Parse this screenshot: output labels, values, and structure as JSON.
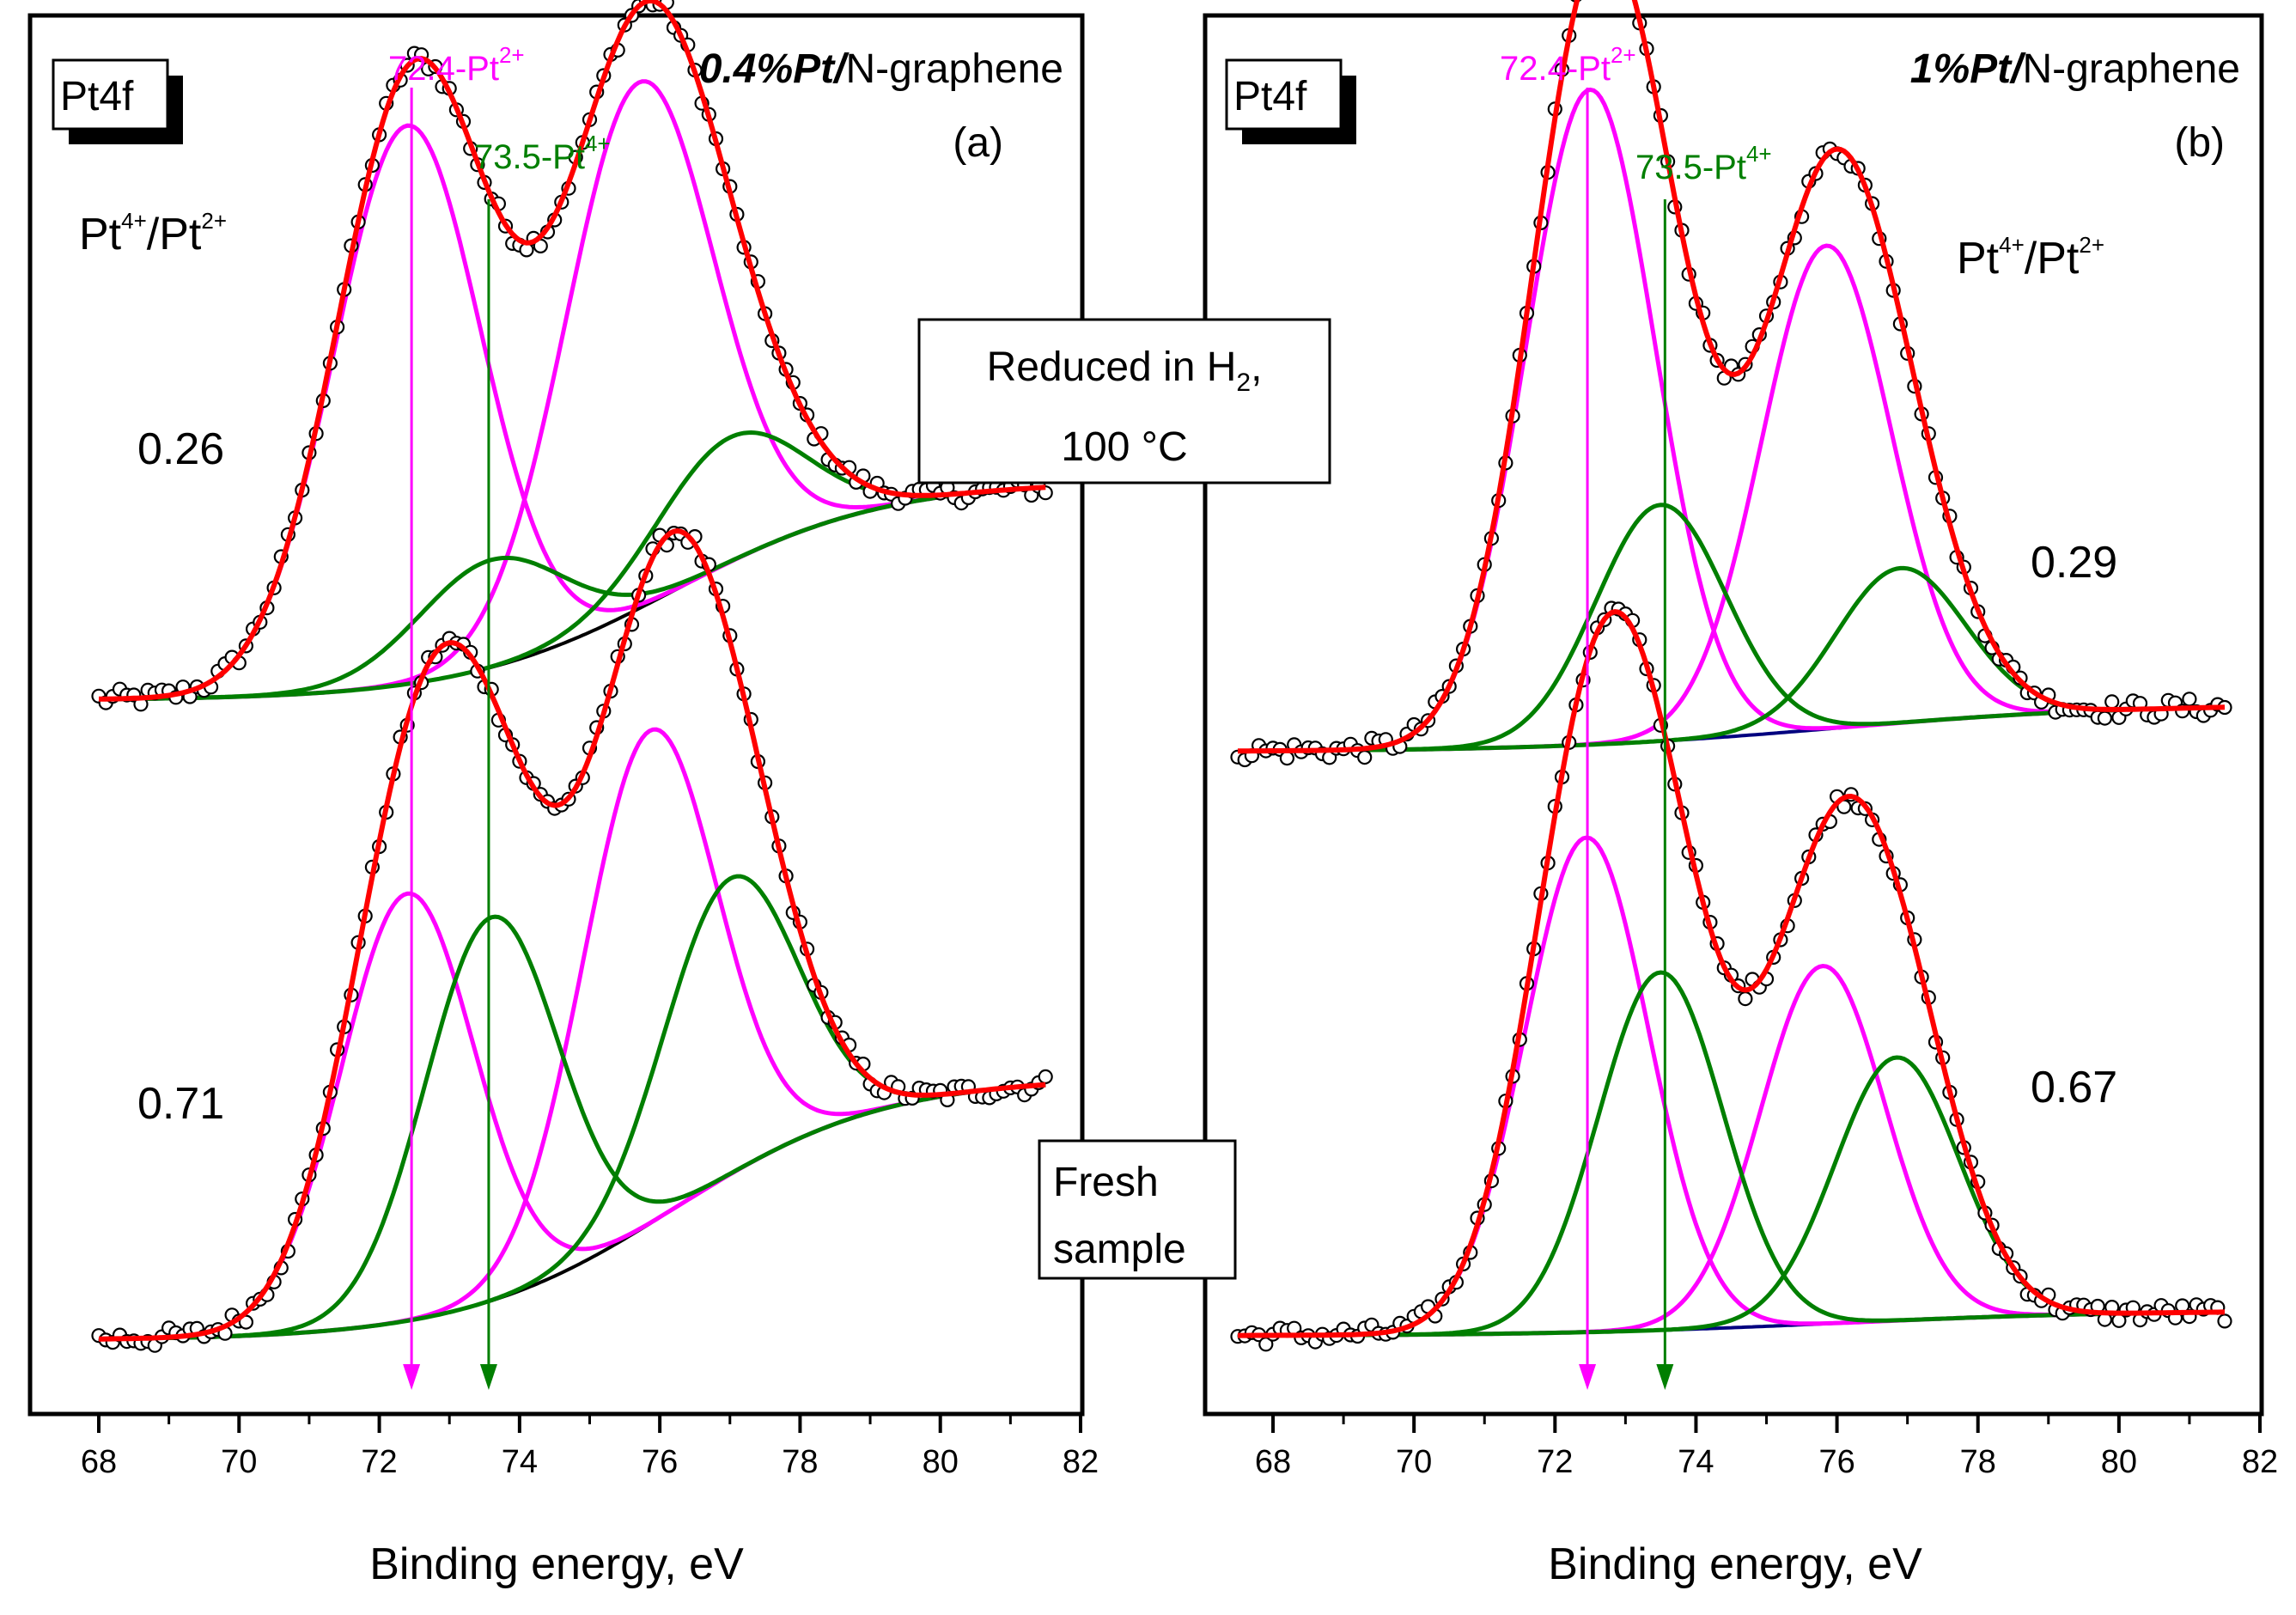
{
  "colors": {
    "data": "#ffffff",
    "envelope": "#ff0000",
    "pt2": "#ff00ff",
    "pt4": "#007f00",
    "background_a": "#000000",
    "background_b": "#00007f",
    "frame": "#000000"
  },
  "panels": [
    {
      "id": "a",
      "element_label": "Pt4f",
      "sample_prefix": "0.4%Pt/",
      "sample_suffix": "N-graphene",
      "letter": "(a)",
      "xlabel": "Binding energy, eV",
      "ratio_label_main_1": "Pt",
      "ratio_label_sup_1": "4+",
      "ratio_label_main_2": "/Pt",
      "ratio_label_sup_2": "2+",
      "marker_pt2_main": "72.4-Pt",
      "marker_pt2_sup": "2+",
      "marker_pt4_main": "73.5-Pt",
      "marker_pt4_sup": "4+",
      "ticks": [
        "68",
        "70",
        "72",
        "74",
        "76",
        "78",
        "80",
        "82"
      ]
    },
    {
      "id": "b",
      "element_label": "Pt4f",
      "sample_prefix": "1%Pt/",
      "sample_suffix": "N-graphene",
      "letter": "(b)",
      "xlabel": "Binding energy, eV",
      "ratio_label_main_1": "Pt",
      "ratio_label_sup_1": "4+",
      "ratio_label_main_2": "/Pt",
      "ratio_label_sup_2": "2+",
      "marker_pt2_main": "72.4-Pt",
      "marker_pt2_sup": "2+",
      "marker_pt4_main": "73.5-Pt",
      "marker_pt4_sup": "4+",
      "ticks": [
        "68",
        "70",
        "72",
        "74",
        "76",
        "78",
        "80",
        "82"
      ]
    }
  ],
  "center_boxes": {
    "reduced_line1_main": "Reduced  in H",
    "reduced_line1_sub": "2",
    "reduced_line1_tail": ",",
    "reduced_line2": "100 °C",
    "fresh_line1": "Fresh",
    "fresh_line2": "sample"
  },
  "chart_data": [
    {
      "type": "line",
      "panel": "a",
      "xlim": [
        68,
        82
      ],
      "x_ticks": [
        68,
        70,
        72,
        74,
        76,
        78,
        80,
        82
      ],
      "xlabel": "Binding energy, eV",
      "marker_lines": [
        72.4,
        73.5
      ],
      "spectra": [
        {
          "condition": "Reduced in H2, 100 °C",
          "ratio": "0.26",
          "x_range": [
            68,
            81.5
          ],
          "baseline": {
            "low": 0,
            "high": 1.02,
            "center": 76.2,
            "width": 1.5
          },
          "components": [
            {
              "species": "Pt2+",
              "center": 72.4,
              "height": 2.6,
              "sigma": 1.05
            },
            {
              "species": "Pt2+",
              "center": 75.7,
              "height": 2.45,
              "sigma": 1.05
            },
            {
              "species": "Pt4+",
              "center": 73.6,
              "height": 0.5,
              "sigma": 1.05
            },
            {
              "species": "Pt4+",
              "center": 77.0,
              "height": 0.58,
              "sigma": 1.05
            }
          ],
          "note_ratio_position": "left"
        },
        {
          "condition": "Fresh sample",
          "ratio": "0.71",
          "x_range": [
            68,
            81.5
          ],
          "baseline": {
            "low": 0,
            "high": 1.2,
            "center": 76.2,
            "width": 1.5
          },
          "components": [
            {
              "species": "Pt2+",
              "center": 72.4,
              "height": 1.95,
              "sigma": 0.95
            },
            {
              "species": "Pt2+",
              "center": 75.85,
              "height": 2.25,
              "sigma": 0.95
            },
            {
              "species": "Pt4+",
              "center": 73.6,
              "height": 1.75,
              "sigma": 0.95
            },
            {
              "species": "Pt4+",
              "center": 77.0,
              "height": 1.35,
              "sigma": 0.95
            }
          ],
          "note_ratio_position": "left"
        }
      ]
    },
    {
      "type": "line",
      "panel": "b",
      "xlim": [
        67.5,
        82
      ],
      "x_ticks": [
        68,
        70,
        72,
        74,
        76,
        78,
        80,
        82
      ],
      "xlabel": "Binding energy, eV",
      "marker_lines": [
        72.4,
        73.5
      ],
      "spectra": [
        {
          "condition": "Reduced in H2, 100 °C",
          "ratio": "0.29",
          "x_range": [
            67.5,
            81.5
          ],
          "baseline": {
            "low": 0,
            "high": 0.22,
            "center": 76.0,
            "width": 2.0
          },
          "components": [
            {
              "species": "Pt2+",
              "center": 72.5,
              "height": 3.05,
              "sigma": 0.92
            },
            {
              "species": "Pt2+",
              "center": 75.85,
              "height": 2.25,
              "sigma": 0.92
            },
            {
              "species": "Pt4+",
              "center": 73.5,
              "height": 1.1,
              "sigma": 0.92
            },
            {
              "species": "Pt4+",
              "center": 76.9,
              "height": 0.72,
              "sigma": 0.92
            }
          ],
          "note_ratio_position": "right"
        },
        {
          "condition": "Fresh sample",
          "ratio": "0.67",
          "x_range": [
            67.5,
            81.5
          ],
          "baseline": {
            "low": 0,
            "high": 0.12,
            "center": 76.0,
            "width": 2.0
          },
          "components": [
            {
              "species": "Pt2+",
              "center": 72.45,
              "height": 2.35,
              "sigma": 0.88
            },
            {
              "species": "Pt2+",
              "center": 75.8,
              "height": 1.7,
              "sigma": 0.88
            },
            {
              "species": "Pt4+",
              "center": 73.5,
              "height": 1.7,
              "sigma": 0.88
            },
            {
              "species": "Pt4+",
              "center": 76.85,
              "height": 1.25,
              "sigma": 0.88
            }
          ],
          "note_ratio_position": "right"
        }
      ]
    }
  ]
}
